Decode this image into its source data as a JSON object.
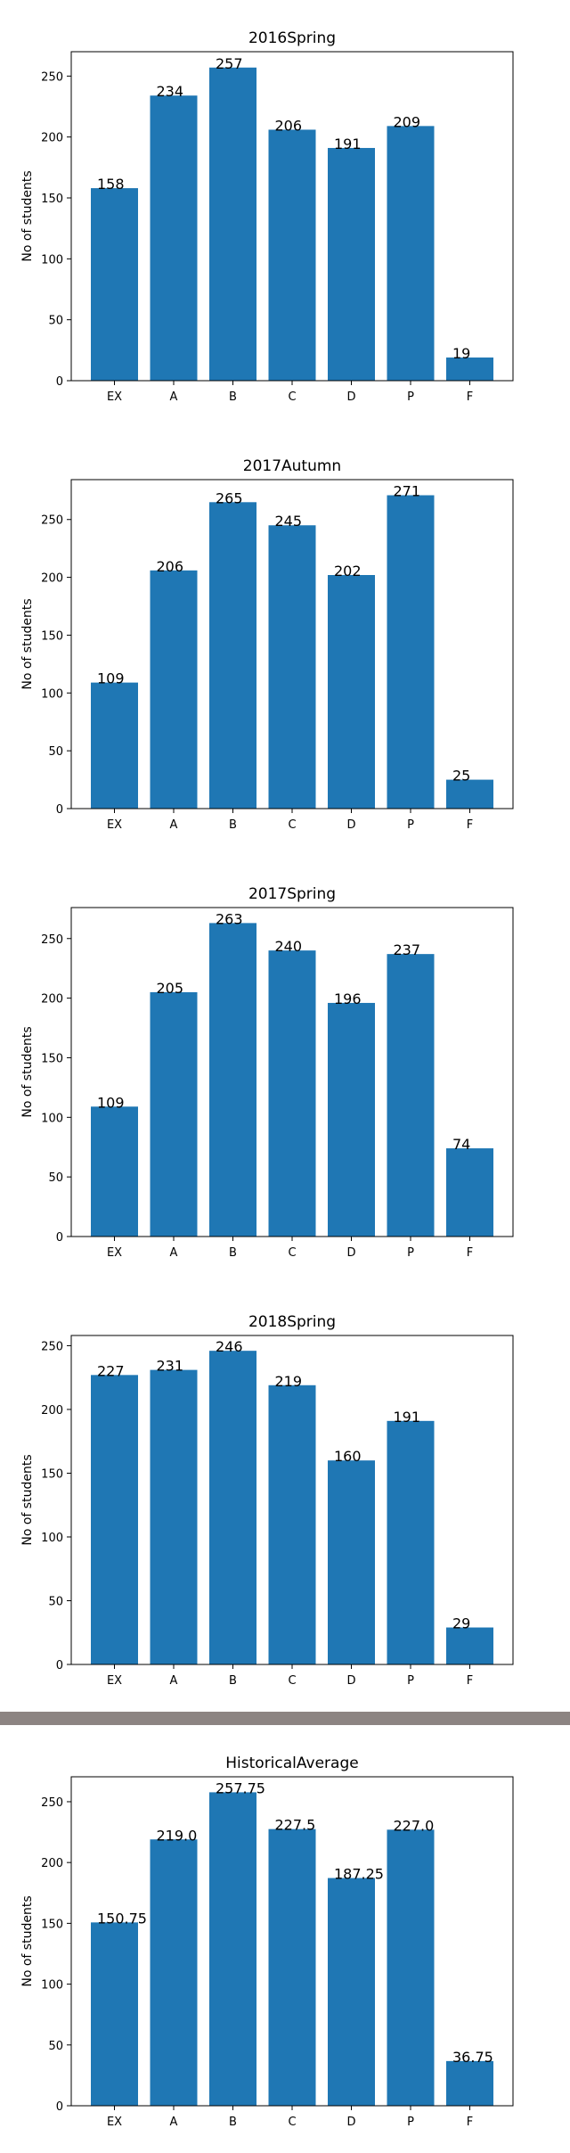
{
  "chart_data": [
    {
      "type": "bar",
      "title": "2016Spring",
      "xlabel": "",
      "ylabel": "No of students",
      "categories": [
        "EX",
        "A",
        "B",
        "C",
        "D",
        "P",
        "F"
      ],
      "values": [
        158,
        234,
        257,
        206,
        191,
        209,
        19
      ],
      "value_labels": [
        "158",
        "234",
        "257",
        "206",
        "191",
        "209",
        "19"
      ],
      "ylim": [
        0,
        270
      ],
      "yticks": [
        0,
        50,
        100,
        150,
        200,
        250
      ],
      "grid": false,
      "bar_color": "#1f77b4"
    },
    {
      "type": "bar",
      "title": "2017Autumn",
      "xlabel": "",
      "ylabel": "No of students",
      "categories": [
        "EX",
        "A",
        "B",
        "C",
        "D",
        "P",
        "F"
      ],
      "values": [
        109,
        206,
        265,
        245,
        202,
        271,
        25
      ],
      "value_labels": [
        "109",
        "206",
        "265",
        "245",
        "202",
        "271",
        "25"
      ],
      "ylim": [
        0,
        284.5
      ],
      "yticks": [
        0,
        50,
        100,
        150,
        200,
        250
      ],
      "grid": false,
      "bar_color": "#1f77b4"
    },
    {
      "type": "bar",
      "title": "2017Spring",
      "xlabel": "",
      "ylabel": "No of students",
      "categories": [
        "EX",
        "A",
        "B",
        "C",
        "D",
        "P",
        "F"
      ],
      "values": [
        109,
        205,
        263,
        240,
        196,
        237,
        74
      ],
      "value_labels": [
        "109",
        "205",
        "263",
        "240",
        "196",
        "237",
        "74"
      ],
      "ylim": [
        0,
        276
      ],
      "yticks": [
        0,
        50,
        100,
        150,
        200,
        250
      ],
      "grid": false,
      "bar_color": "#1f77b4"
    },
    {
      "type": "bar",
      "title": "2018Spring",
      "xlabel": "",
      "ylabel": "No of students",
      "categories": [
        "EX",
        "A",
        "B",
        "C",
        "D",
        "P",
        "F"
      ],
      "values": [
        227,
        231,
        246,
        219,
        160,
        191,
        29
      ],
      "value_labels": [
        "227",
        "231",
        "246",
        "219",
        "160",
        "191",
        "29"
      ],
      "ylim": [
        0,
        258
      ],
      "yticks": [
        0,
        50,
        100,
        150,
        200,
        250
      ],
      "grid": false,
      "bar_color": "#1f77b4"
    },
    {
      "type": "bar",
      "title": "HistoricalAverage",
      "xlabel": "",
      "ylabel": "No of students",
      "categories": [
        "EX",
        "A",
        "B",
        "C",
        "D",
        "P",
        "F"
      ],
      "values": [
        150.75,
        219.0,
        257.75,
        227.5,
        187.25,
        227.0,
        36.75
      ],
      "value_labels": [
        "150.75",
        "219.0",
        "257.75",
        "227.5",
        "187.25",
        "227.0",
        "36.75"
      ],
      "ylim": [
        0,
        270.5
      ],
      "yticks": [
        0,
        50,
        100,
        150,
        200,
        250
      ],
      "grid": false,
      "bar_color": "#1f77b4"
    }
  ]
}
